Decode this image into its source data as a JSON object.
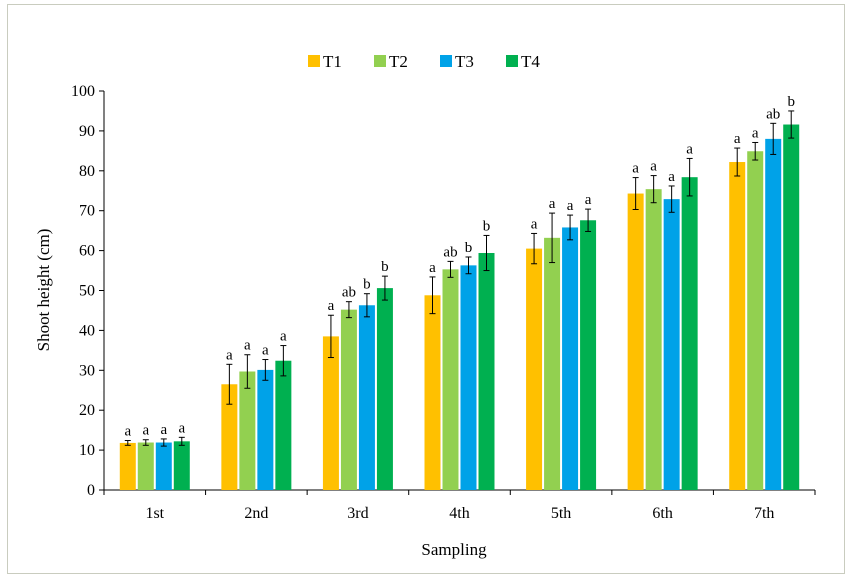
{
  "chart_data": {
    "type": "bar",
    "title": "",
    "xlabel": "Sampling",
    "ylabel": "Shoot height (cm)",
    "ylim": [
      0,
      100
    ],
    "yticks": [
      0,
      10,
      20,
      30,
      40,
      50,
      60,
      70,
      80,
      90,
      100
    ],
    "grid": false,
    "legend_position": "top-center",
    "categories": [
      "1st",
      "2nd",
      "3rd",
      "4th",
      "5th",
      "6th",
      "7th"
    ],
    "series": [
      {
        "name": "T1",
        "color": "#FFC000",
        "values": [
          11.8,
          26.5,
          38.5,
          48.8,
          60.5,
          74.3,
          82.2
        ],
        "errors": [
          0.6,
          5.0,
          5.3,
          4.6,
          3.8,
          4.0,
          3.5
        ],
        "letters": [
          "a",
          "a",
          "a",
          "a",
          "a",
          "a",
          "a"
        ]
      },
      {
        "name": "T2",
        "color": "#92D050",
        "values": [
          11.9,
          29.7,
          45.2,
          55.3,
          63.2,
          75.4,
          84.9
        ],
        "errors": [
          0.7,
          4.2,
          2.0,
          2.0,
          6.2,
          3.4,
          2.2
        ],
        "letters": [
          "a",
          "a",
          "ab",
          "ab",
          "a",
          "a",
          "a"
        ]
      },
      {
        "name": "T3",
        "color": "#00A2E8",
        "values": [
          11.9,
          30.1,
          46.3,
          56.3,
          65.8,
          72.9,
          88.0
        ],
        "errors": [
          0.9,
          2.6,
          2.9,
          2.1,
          3.1,
          3.3,
          3.9
        ],
        "letters": [
          "a",
          "a",
          "b",
          "b",
          "a",
          "a",
          "ab"
        ]
      },
      {
        "name": "T4",
        "color": "#00B050",
        "values": [
          12.2,
          32.4,
          50.6,
          59.4,
          67.6,
          78.4,
          91.6
        ],
        "errors": [
          1.0,
          3.8,
          3.0,
          4.4,
          2.8,
          4.7,
          3.4
        ],
        "letters": [
          "a",
          "a",
          "b",
          "b",
          "a",
          "a",
          "b"
        ]
      }
    ]
  }
}
